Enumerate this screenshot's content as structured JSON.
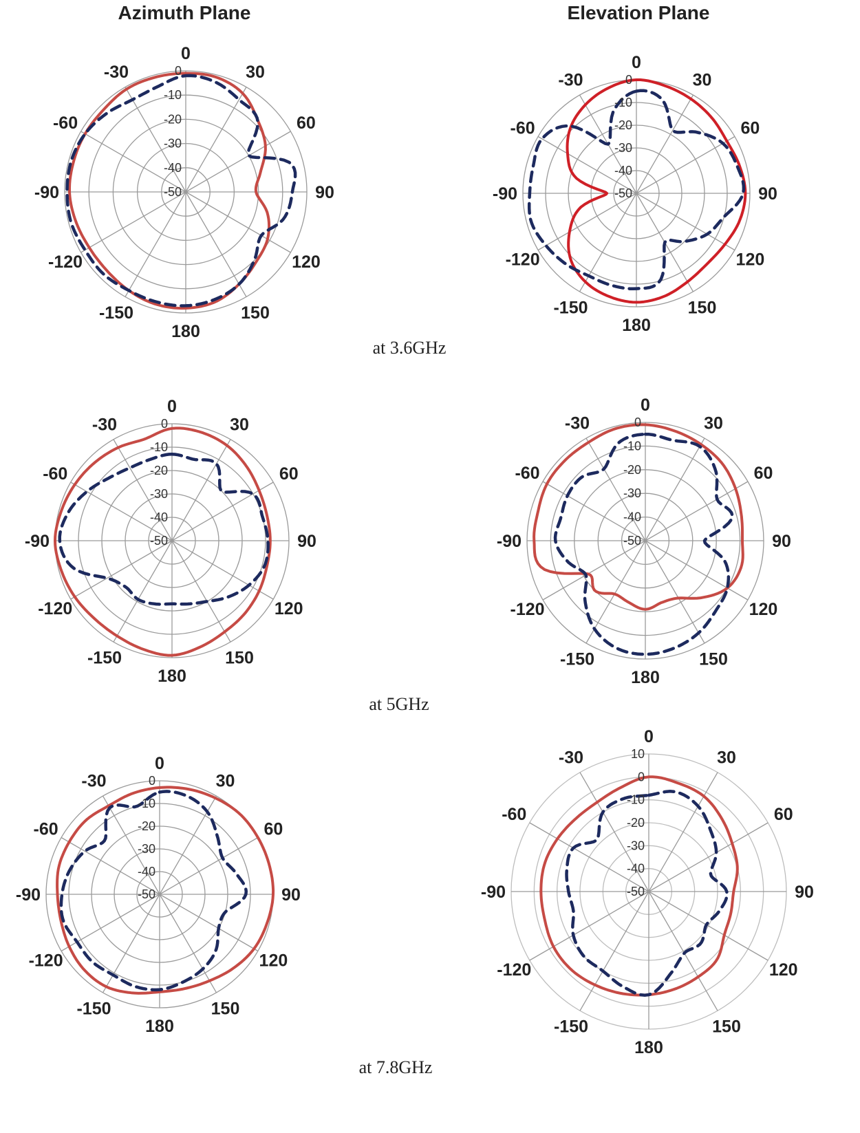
{
  "column_titles": [
    "Azimuth Plane",
    "Elevation Plane"
  ],
  "captions": [
    "at 3.6GHz",
    "at 5GHz",
    "at 7.8GHz"
  ],
  "colors": {
    "solid": "#c64b45",
    "solid_bright": "#cf2027",
    "dashed": "#1d2a5e",
    "grid": "#9a9a9a"
  },
  "chart_data": [
    {
      "type": "polar-line",
      "plane": "Azimuth Plane",
      "caption": "at 3.6GHz",
      "angle_ticks": [
        0,
        30,
        60,
        90,
        120,
        150,
        180,
        -150,
        -120,
        -90,
        -60,
        -30
      ],
      "radial_ticks": [
        0,
        -10,
        -20,
        -30,
        -40,
        -50
      ],
      "rlim": [
        -50,
        0
      ],
      "grid": true,
      "angles": [
        0,
        15,
        30,
        45,
        60,
        75,
        90,
        105,
        120,
        135,
        150,
        165,
        180,
        -165,
        -150,
        -135,
        -120,
        -105,
        -90,
        -75,
        -60,
        -45,
        -30,
        -15
      ],
      "series": [
        {
          "style": "solid",
          "values": [
            -1,
            -1,
            -3,
            -8,
            -12,
            -18,
            -21,
            -15,
            -11,
            -9,
            -6,
            -3,
            -2,
            -2,
            -3,
            -4,
            -4,
            -3,
            -2,
            -2,
            -2,
            -2,
            -1,
            -1
          ]
        },
        {
          "style": "dashed",
          "values": [
            -2,
            -3,
            -6,
            -8,
            -20,
            -5,
            -6,
            -8,
            -14,
            -10,
            -6,
            -4,
            -3,
            -3,
            -3,
            -2,
            -2,
            -1,
            -1,
            -1,
            -2,
            -4,
            -6,
            -5
          ]
        }
      ]
    },
    {
      "type": "polar-line",
      "plane": "Elevation Plane",
      "caption": "at 3.6GHz",
      "angle_ticks": [
        0,
        30,
        60,
        90,
        120,
        150,
        180,
        -150,
        -120,
        -90,
        -60,
        -30
      ],
      "radial_ticks": [
        0,
        -10,
        -20,
        -30,
        -40,
        -50
      ],
      "rlim": [
        -50,
        0
      ],
      "grid": true,
      "angles": [
        0,
        15,
        30,
        45,
        60,
        75,
        90,
        105,
        120,
        135,
        150,
        165,
        180,
        -165,
        -150,
        -135,
        -120,
        -105,
        -90,
        -75,
        -60,
        -45,
        -30,
        -15
      ],
      "series": [
        {
          "style": "solid",
          "values": [
            0,
            -1,
            -2,
            -3,
            -4,
            -3,
            -2,
            -3,
            -5,
            -6,
            -5,
            -3,
            -2,
            -3,
            -5,
            -9,
            -16,
            -24,
            -37,
            -22,
            -15,
            -9,
            -5,
            -2
          ]
        },
        {
          "style": "dashed",
          "values": [
            -5,
            -7,
            -18,
            -12,
            -6,
            -4,
            -3,
            -10,
            -14,
            -20,
            -25,
            -10,
            -8,
            -8,
            -8,
            -6,
            -4,
            -2,
            -3,
            -3,
            -2,
            -8,
            -25,
            -12
          ]
        }
      ]
    },
    {
      "type": "polar-line",
      "plane": "Azimuth Plane",
      "caption": "at 5GHz",
      "angle_ticks": [
        0,
        30,
        60,
        90,
        120,
        150,
        180,
        -150,
        -120,
        -90,
        -60,
        -30
      ],
      "radial_ticks": [
        0,
        -10,
        -20,
        -30,
        -40,
        -50
      ],
      "rlim": [
        -50,
        0
      ],
      "grid": true,
      "angles": [
        0,
        15,
        30,
        45,
        60,
        75,
        90,
        105,
        120,
        135,
        150,
        165,
        180,
        -165,
        -150,
        -135,
        -120,
        -105,
        -90,
        -75,
        -60,
        -45,
        -30,
        -15
      ],
      "series": [
        {
          "style": "solid",
          "values": [
            -2,
            -2,
            -3,
            -5,
            -7,
            -8,
            -8,
            -8,
            -7,
            -6,
            -5,
            -3,
            -1,
            -2,
            -3,
            -3,
            -2,
            -1,
            0,
            -1,
            -2,
            -3,
            -4,
            -5
          ]
        },
        {
          "style": "dashed",
          "values": [
            -13,
            -14,
            -12,
            -20,
            -10,
            -10,
            -9,
            -9,
            -12,
            -16,
            -20,
            -22,
            -23,
            -22,
            -21,
            -22,
            -18,
            -6,
            -2,
            -4,
            -8,
            -12,
            -14,
            -14
          ]
        }
      ]
    },
    {
      "type": "polar-line",
      "plane": "Elevation Plane",
      "caption": "at 5GHz",
      "angle_ticks": [
        0,
        30,
        60,
        90,
        120,
        150,
        180,
        -150,
        -120,
        -90,
        -60,
        -30
      ],
      "radial_ticks": [
        0,
        -10,
        -20,
        -30,
        -40,
        -50
      ],
      "rlim": [
        -50,
        0
      ],
      "grid": true,
      "angles": [
        0,
        15,
        30,
        45,
        60,
        75,
        90,
        105,
        120,
        135,
        150,
        165,
        180,
        -165,
        -150,
        -135,
        -120,
        -105,
        -90,
        -75,
        -60,
        -45,
        -30,
        -15
      ],
      "series": [
        {
          "style": "solid",
          "values": [
            -1,
            -2,
            -3,
            -4,
            -6,
            -8,
            -9,
            -8,
            -10,
            -16,
            -22,
            -23,
            -21,
            -23,
            -24,
            -20,
            -22,
            -5,
            -3,
            -3,
            -2,
            -2,
            -2,
            -1
          ]
        },
        {
          "style": "dashed",
          "values": [
            -5,
            -6,
            -4,
            -8,
            -15,
            -12,
            -25,
            -15,
            -10,
            -8,
            -5,
            -3,
            -2,
            -3,
            -7,
            -14,
            -21,
            -16,
            -12,
            -13,
            -12,
            -12,
            -15,
            -7
          ]
        }
      ]
    },
    {
      "type": "polar-line",
      "plane": "Azimuth Plane",
      "caption": "at 7.8GHz",
      "angle_ticks": [
        0,
        30,
        60,
        90,
        120,
        150,
        180,
        -150,
        -120,
        -90,
        -60,
        -30
      ],
      "radial_ticks": [
        0,
        -10,
        -20,
        -30,
        -40,
        -50
      ],
      "rlim": [
        -50,
        0
      ],
      "grid": true,
      "angles": [
        0,
        15,
        30,
        45,
        60,
        75,
        90,
        105,
        120,
        135,
        150,
        165,
        180,
        -165,
        -150,
        -135,
        -120,
        -105,
        -90,
        -75,
        -60,
        -45,
        -30,
        -15
      ],
      "series": [
        {
          "style": "solid",
          "values": [
            -3,
            -2,
            -1,
            0,
            0,
            0,
            0,
            -1,
            -2,
            -4,
            -6,
            -7,
            -7,
            -5,
            -3,
            -3,
            -4,
            -5,
            -5,
            -4,
            -4,
            -4,
            -5,
            -4
          ]
        },
        {
          "style": "dashed",
          "values": [
            -5,
            -5,
            -8,
            -14,
            -18,
            -15,
            -12,
            -20,
            -20,
            -15,
            -12,
            -10,
            -8,
            -8,
            -9,
            -8,
            -8,
            -6,
            -7,
            -9,
            -12,
            -16,
            -6,
            -10
          ]
        }
      ]
    },
    {
      "type": "polar-line",
      "plane": "Elevation Plane",
      "caption": "at 7.8GHz",
      "angle_ticks": [
        0,
        30,
        60,
        90,
        120,
        150,
        180,
        -150,
        -120,
        -90,
        -60,
        -30
      ],
      "radial_ticks": [
        10,
        0,
        -10,
        -20,
        -30,
        -40,
        -50
      ],
      "rlim": [
        -50,
        10
      ],
      "grid": true,
      "angles": [
        0,
        15,
        30,
        45,
        60,
        75,
        90,
        105,
        120,
        135,
        150,
        165,
        180,
        -165,
        -150,
        -135,
        -120,
        -105,
        -90,
        -75,
        -60,
        -45,
        -30,
        -15
      ],
      "series": [
        {
          "style": "solid",
          "values": [
            0,
            -1,
            -2,
            -5,
            -8,
            -10,
            -13,
            -13,
            -12,
            -8,
            -7,
            -6,
            -5,
            -4,
            -3,
            -2,
            -2,
            -3,
            -3,
            -3,
            -4,
            -5,
            -5,
            -3
          ]
        },
        {
          "style": "dashed",
          "values": [
            -8,
            -5,
            -7,
            -12,
            -16,
            -22,
            -16,
            -18,
            -21,
            -18,
            -19,
            -13,
            -5,
            -7,
            -10,
            -10,
            -12,
            -16,
            -15,
            -13,
            -12,
            -18,
            -10,
            -8
          ]
        }
      ]
    }
  ]
}
